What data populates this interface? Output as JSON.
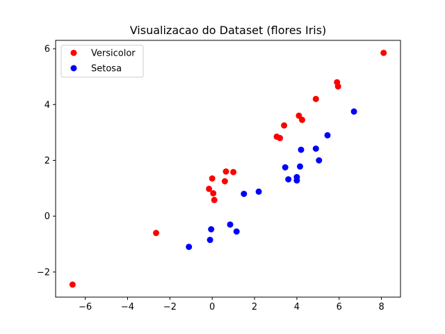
{
  "chart_data": {
    "type": "scatter",
    "title": "Visualizacao do Dataset (flores Iris)",
    "xlabel": "",
    "ylabel": "",
    "xlim": [
      -7.4,
      8.9
    ],
    "ylim": [
      -2.9,
      6.3
    ],
    "xticks": [
      -6,
      -4,
      -2,
      0,
      2,
      4,
      6,
      8
    ],
    "yticks": [
      -2,
      0,
      2,
      4,
      6
    ],
    "xtick_labels": [
      "−6",
      "−4",
      "−2",
      "0",
      "2",
      "4",
      "6",
      "8"
    ],
    "ytick_labels": [
      "−2",
      "0",
      "2",
      "4",
      "6"
    ],
    "grid": false,
    "legend_position": "top-left",
    "series": [
      {
        "name": "Versicolor",
        "color": "#ff0000",
        "points": [
          [
            8.1,
            5.85
          ],
          [
            5.9,
            4.8
          ],
          [
            5.95,
            4.65
          ],
          [
            4.9,
            4.2
          ],
          [
            4.1,
            3.6
          ],
          [
            4.25,
            3.45
          ],
          [
            3.4,
            3.25
          ],
          [
            3.05,
            2.85
          ],
          [
            3.2,
            2.8
          ],
          [
            0.65,
            1.6
          ],
          [
            1.0,
            1.58
          ],
          [
            0.0,
            1.35
          ],
          [
            0.6,
            1.25
          ],
          [
            -0.15,
            0.98
          ],
          [
            0.05,
            0.82
          ],
          [
            0.1,
            0.58
          ],
          [
            -2.65,
            -0.6
          ],
          [
            -6.6,
            -2.45
          ]
        ]
      },
      {
        "name": "Setosa",
        "color": "#0000ff",
        "points": [
          [
            6.7,
            3.75
          ],
          [
            5.45,
            2.9
          ],
          [
            4.9,
            2.42
          ],
          [
            4.2,
            2.38
          ],
          [
            5.05,
            2.0
          ],
          [
            3.45,
            1.75
          ],
          [
            4.15,
            1.78
          ],
          [
            4.0,
            1.4
          ],
          [
            3.6,
            1.32
          ],
          [
            4.0,
            1.28
          ],
          [
            2.2,
            0.88
          ],
          [
            1.5,
            0.8
          ],
          [
            0.85,
            -0.3
          ],
          [
            1.15,
            -0.55
          ],
          [
            -0.05,
            -0.47
          ],
          [
            -0.1,
            -0.85
          ],
          [
            -1.1,
            -1.1
          ]
        ]
      }
    ]
  }
}
